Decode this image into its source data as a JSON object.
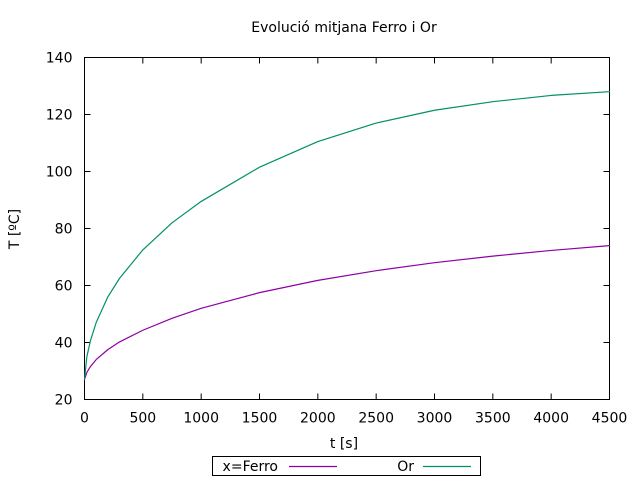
{
  "chart_data": {
    "type": "line",
    "title": "Evolució mitjana Ferro i Or",
    "xlabel": "t [s]",
    "ylabel": "T [ºC]",
    "xlim": [
      0,
      4500
    ],
    "ylim": [
      20,
      140
    ],
    "x_ticks": [
      0,
      500,
      1000,
      1500,
      2000,
      2500,
      3000,
      3500,
      4000,
      4500
    ],
    "y_ticks": [
      20,
      40,
      60,
      80,
      100,
      120,
      140
    ],
    "legend_position": "bottom-center",
    "grid": false,
    "series": [
      {
        "name": "x=Ferro",
        "color": "#8e00a6",
        "x": [
          0,
          20,
          50,
          100,
          200,
          300,
          500,
          750,
          1000,
          1500,
          2000,
          2500,
          3000,
          3500,
          4000,
          4500
        ],
        "y": [
          27,
          29.5,
          31.5,
          34,
          37.5,
          40.2,
          44.3,
          48.5,
          52,
          57.5,
          61.8,
          65.2,
          68,
          70.3,
          72.3,
          74
        ]
      },
      {
        "name": "Or",
        "color": "#00906a",
        "x": [
          0,
          20,
          50,
          100,
          200,
          300,
          500,
          750,
          1000,
          1500,
          2000,
          2500,
          3000,
          3500,
          4000,
          4500
        ],
        "y": [
          27,
          35,
          40.5,
          47,
          56,
          62.5,
          72.5,
          82,
          89.5,
          101.5,
          110.5,
          117,
          121.5,
          124.5,
          126.7,
          128
        ]
      }
    ]
  }
}
